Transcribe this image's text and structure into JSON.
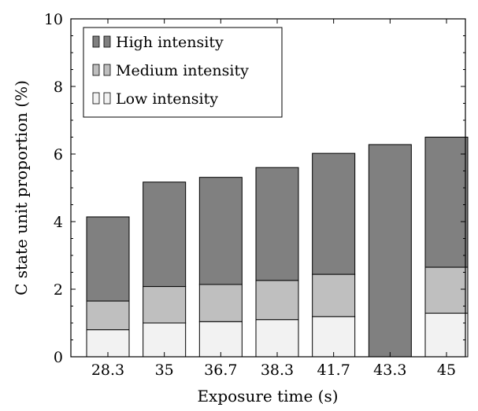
{
  "chart_data": {
    "type": "bar",
    "stacked": true,
    "xlabel": "Exposure time (s)",
    "ylabel": "C state unit proportion (%)",
    "categories": [
      "28.3",
      "35",
      "36.7",
      "38.3",
      "41.7",
      "43.3",
      "45"
    ],
    "ylim": [
      0,
      10
    ],
    "yticks": [
      "0",
      "2",
      "4",
      "6",
      "8",
      "10"
    ],
    "grid": false,
    "legend_position": "top-left",
    "series": [
      {
        "name": "Low intensity",
        "color": "#f2f2f2",
        "values": [
          0.8,
          1.0,
          1.04,
          1.1,
          1.19,
          0,
          1.29
        ]
      },
      {
        "name": "Medium intensity",
        "color": "#bfbfbf",
        "values": [
          0.85,
          1.08,
          1.1,
          1.16,
          1.25,
          0,
          1.36
        ]
      },
      {
        "name": "High intensity",
        "color": "#808080",
        "values": [
          2.49,
          3.09,
          3.17,
          3.34,
          3.58,
          6.28,
          3.85
        ]
      }
    ]
  }
}
